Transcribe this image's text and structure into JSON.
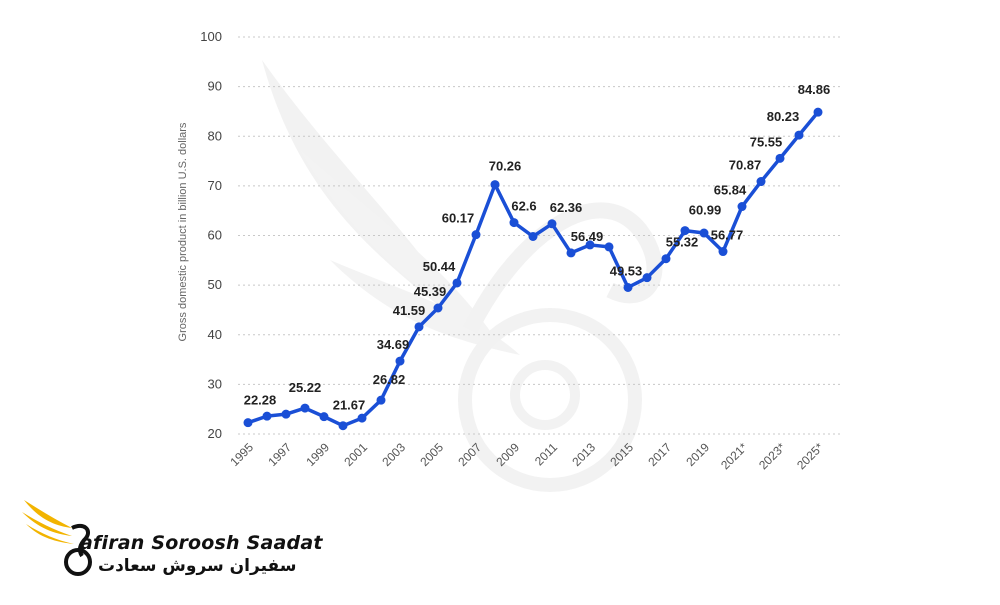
{
  "chart_data": {
    "type": "line",
    "ylabel": "Gross domestic product in billion U.S. dollars",
    "ylim": [
      20,
      100
    ],
    "yticks": [
      20,
      30,
      40,
      50,
      60,
      70,
      80,
      90,
      100
    ],
    "x": [
      "1995",
      "1996",
      "1997",
      "1998",
      "1999",
      "2000",
      "2001",
      "2002",
      "2003",
      "2004",
      "2005",
      "2006",
      "2007",
      "2008",
      "2009",
      "2010",
      "2011",
      "2012",
      "2013",
      "2014",
      "2015",
      "2016",
      "2017",
      "2018",
      "2019",
      "2020",
      "2021*",
      "2022*",
      "2023*",
      "2024*",
      "2025*"
    ],
    "xtick_labels": [
      "1995",
      "1997",
      "1999",
      "2001",
      "2003",
      "2005",
      "2007",
      "2009",
      "2011",
      "2013",
      "2015",
      "2017",
      "2019",
      "2021*",
      "2023*",
      "2025*"
    ],
    "series": [
      {
        "values": [
          22.28,
          23.6,
          24.0,
          25.22,
          23.5,
          21.67,
          23.2,
          26.82,
          34.69,
          41.59,
          45.39,
          50.44,
          60.17,
          70.26,
          62.6,
          59.8,
          62.36,
          56.49,
          58.1,
          57.7,
          49.53,
          51.5,
          55.32,
          60.99,
          60.5,
          56.77,
          65.84,
          70.87,
          75.55,
          80.23,
          84.86
        ],
        "labels": [
          "22.28",
          "",
          "",
          "25.22",
          "",
          "21.67",
          "",
          "26.82",
          "34.69",
          "41.59",
          "45.39",
          "50.44",
          "60.17",
          "70.26",
          "62.6",
          "",
          "62.36",
          "56.49",
          "",
          "",
          "49.53",
          "",
          "55.32",
          "60.99",
          "",
          "56.77",
          "65.84",
          "70.87",
          "75.55",
          "80.23",
          "84.86"
        ],
        "color": "#1a4fd6"
      }
    ],
    "grid": true
  },
  "brand": {
    "name_en": "afiran Soroosh Saadat",
    "name_fa": "سفیران سروش سعادت",
    "accent": "#f2b400"
  }
}
